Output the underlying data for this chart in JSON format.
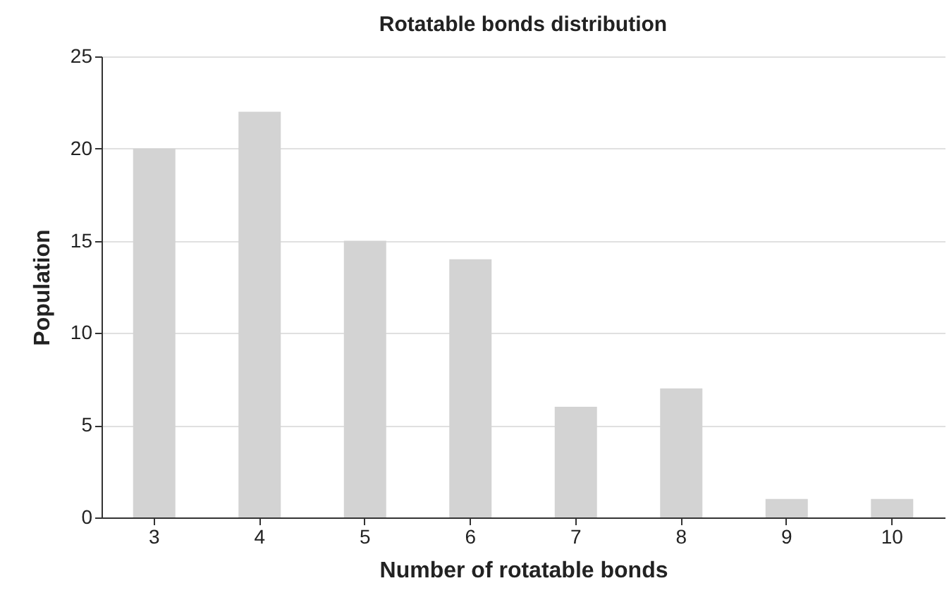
{
  "chart_data": {
    "type": "bar",
    "title": "Rotatable bonds distribution",
    "xlabel": "Number of rotatable bonds",
    "ylabel": "Population",
    "categories": [
      "3",
      "4",
      "5",
      "6",
      "7",
      "8",
      "9",
      "10"
    ],
    "values": [
      20,
      22,
      15,
      14,
      6,
      7,
      1,
      1
    ],
    "color": "#d3d3d3",
    "ylim": [
      0,
      25
    ],
    "yticks": [
      0,
      5,
      10,
      15,
      20,
      25
    ],
    "grid": "y"
  }
}
